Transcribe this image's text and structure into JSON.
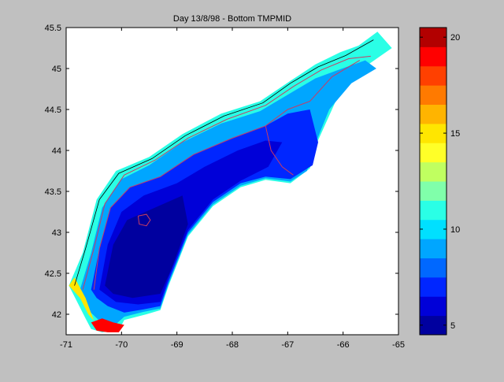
{
  "figure": {
    "background": "#c0c0c0"
  },
  "chart_data": [
    {
      "type": "heatmap",
      "title": "Day 13/8/98 - Bottom TMPMID",
      "xlabel": "",
      "ylabel": "",
      "xlim": [
        -71,
        -65
      ],
      "ylim": [
        41.75,
        45.5
      ],
      "xticks": [
        -71,
        -70,
        -69,
        -68,
        -67,
        -66,
        -65
      ],
      "yticks": [
        42,
        42.5,
        43,
        43.5,
        44,
        44.5,
        45,
        45.5
      ],
      "grid": false,
      "colors": {
        "cold": "#00009f",
        "mid": "#00e8ff",
        "warm": "#ffff00",
        "hot": "#b20000",
        "contour_red": "#c83c64",
        "contour_black": "#000000",
        "plot_background": "#ffffff"
      },
      "regions": [
        {
          "temp": 11,
          "polygon": [
            [
              -70.95,
              42.35
            ],
            [
              -70.7,
              42.75
            ],
            [
              -70.45,
              43.4
            ],
            [
              -70.1,
              43.75
            ],
            [
              -69.5,
              43.92
            ],
            [
              -68.9,
              44.2
            ],
            [
              -68.2,
              44.45
            ],
            [
              -67.5,
              44.6
            ],
            [
              -66.95,
              44.85
            ],
            [
              -66.5,
              45.05
            ],
            [
              -66.05,
              45.2
            ],
            [
              -65.72,
              45.28
            ],
            [
              -65.38,
              45.45
            ],
            [
              -65.12,
              45.25
            ],
            [
              -65.65,
              45.0
            ],
            [
              -66.1,
              44.65
            ],
            [
              -66.5,
              44.05
            ],
            [
              -66.6,
              43.78
            ],
            [
              -66.95,
              43.6
            ],
            [
              -67.4,
              43.64
            ],
            [
              -67.85,
              43.55
            ],
            [
              -68.35,
              43.32
            ],
            [
              -68.8,
              42.95
            ],
            [
              -69.15,
              42.35
            ],
            [
              -69.3,
              42.05
            ],
            [
              -69.55,
              42.0
            ],
            [
              -69.95,
              41.93
            ],
            [
              -70.05,
              41.8
            ],
            [
              -70.35,
              41.78
            ],
            [
              -70.55,
              41.82
            ],
            [
              -70.65,
              41.95
            ]
          ]
        },
        {
          "temp": 9,
          "polygon": [
            [
              -70.75,
              42.3
            ],
            [
              -70.55,
              42.75
            ],
            [
              -70.35,
              43.3
            ],
            [
              -70.0,
              43.65
            ],
            [
              -69.5,
              43.82
            ],
            [
              -68.9,
              44.1
            ],
            [
              -68.2,
              44.33
            ],
            [
              -67.5,
              44.48
            ],
            [
              -66.95,
              44.7
            ],
            [
              -66.5,
              44.88
            ],
            [
              -66.1,
              44.98
            ],
            [
              -65.6,
              45.1
            ],
            [
              -65.4,
              45.0
            ],
            [
              -65.85,
              44.82
            ],
            [
              -66.25,
              44.5
            ],
            [
              -66.55,
              44.0
            ],
            [
              -66.65,
              43.75
            ],
            [
              -66.95,
              43.62
            ],
            [
              -67.4,
              43.66
            ],
            [
              -67.85,
              43.57
            ],
            [
              -68.35,
              43.34
            ],
            [
              -68.8,
              42.97
            ],
            [
              -69.15,
              42.37
            ],
            [
              -69.3,
              42.07
            ],
            [
              -69.6,
              42.03
            ],
            [
              -69.95,
              41.97
            ],
            [
              -70.1,
              41.88
            ],
            [
              -70.4,
              41.92
            ],
            [
              -70.6,
              42.05
            ]
          ]
        },
        {
          "temp": 7,
          "polygon": [
            [
              -70.55,
              42.3
            ],
            [
              -70.4,
              42.8
            ],
            [
              -70.2,
              43.3
            ],
            [
              -69.85,
              43.55
            ],
            [
              -69.3,
              43.68
            ],
            [
              -68.7,
              43.95
            ],
            [
              -68.0,
              44.15
            ],
            [
              -67.4,
              44.3
            ],
            [
              -67.0,
              44.45
            ],
            [
              -66.6,
              44.5
            ],
            [
              -66.45,
              44.1
            ],
            [
              -66.55,
              43.82
            ],
            [
              -66.95,
              43.65
            ],
            [
              -67.4,
              43.68
            ],
            [
              -67.85,
              43.6
            ],
            [
              -68.35,
              43.37
            ],
            [
              -68.8,
              43.0
            ],
            [
              -69.15,
              42.4
            ],
            [
              -69.3,
              42.1
            ],
            [
              -69.6,
              42.06
            ],
            [
              -69.95,
              42.02
            ],
            [
              -70.25,
              42.1
            ],
            [
              -70.45,
              42.2
            ]
          ]
        },
        {
          "temp": 6,
          "polygon": [
            [
              -70.4,
              42.3
            ],
            [
              -70.25,
              42.85
            ],
            [
              -70.0,
              43.25
            ],
            [
              -69.6,
              43.45
            ],
            [
              -69.0,
              43.6
            ],
            [
              -68.5,
              43.8
            ],
            [
              -67.9,
              44.0
            ],
            [
              -67.4,
              44.12
            ],
            [
              -67.1,
              44.1
            ],
            [
              -67.35,
              43.8
            ],
            [
              -67.85,
              43.63
            ],
            [
              -68.35,
              43.4
            ],
            [
              -68.8,
              43.03
            ],
            [
              -69.15,
              42.45
            ],
            [
              -69.3,
              42.15
            ],
            [
              -69.7,
              42.12
            ],
            [
              -70.1,
              42.15
            ]
          ]
        },
        {
          "temp": 5,
          "polygon": [
            [
              -70.3,
              42.35
            ],
            [
              -70.15,
              42.85
            ],
            [
              -69.9,
              43.15
            ],
            [
              -69.4,
              43.3
            ],
            [
              -68.9,
              43.45
            ],
            [
              -68.8,
              43.1
            ],
            [
              -69.1,
              42.55
            ],
            [
              -69.3,
              42.25
            ],
            [
              -69.8,
              42.2
            ],
            [
              -70.15,
              42.25
            ]
          ]
        },
        {
          "temp": 19,
          "polygon": [
            [
              -70.55,
              41.9
            ],
            [
              -70.45,
              41.8
            ],
            [
              -70.25,
              41.78
            ],
            [
              -70.05,
              41.78
            ],
            [
              -69.95,
              41.87
            ],
            [
              -70.15,
              41.9
            ],
            [
              -70.35,
              41.95
            ]
          ]
        },
        {
          "temp": 15,
          "polygon": [
            [
              -70.95,
              42.35
            ],
            [
              -70.75,
              42.2
            ],
            [
              -70.6,
              42.0
            ],
            [
              -70.5,
              41.92
            ],
            [
              -70.65,
              42.2
            ],
            [
              -70.85,
              42.45
            ]
          ]
        }
      ],
      "red_contours": [
        [
          [
            -70.5,
            42.3
          ],
          [
            -70.4,
            42.8
          ],
          [
            -70.2,
            43.3
          ],
          [
            -69.85,
            43.55
          ],
          [
            -69.3,
            43.68
          ],
          [
            -68.7,
            43.95
          ],
          [
            -68.0,
            44.15
          ],
          [
            -67.4,
            44.3
          ],
          [
            -67.0,
            44.5
          ],
          [
            -66.6,
            44.6
          ],
          [
            -66.2,
            44.9
          ],
          [
            -65.7,
            45.1
          ]
        ],
        [
          [
            -70.7,
            42.3
          ],
          [
            -70.5,
            42.8
          ],
          [
            -70.3,
            43.35
          ],
          [
            -69.95,
            43.7
          ],
          [
            -69.4,
            43.88
          ],
          [
            -68.8,
            44.15
          ],
          [
            -68.1,
            44.38
          ],
          [
            -67.4,
            44.55
          ],
          [
            -66.9,
            44.78
          ],
          [
            -66.4,
            44.98
          ],
          [
            -65.9,
            45.12
          ],
          [
            -65.5,
            45.15
          ]
        ],
        [
          [
            -69.7,
            43.2
          ],
          [
            -69.55,
            43.22
          ],
          [
            -69.48,
            43.15
          ],
          [
            -69.55,
            43.08
          ],
          [
            -69.68,
            43.1
          ],
          [
            -69.7,
            43.2
          ]
        ],
        [
          [
            -67.4,
            44.3
          ],
          [
            -67.3,
            44.0
          ],
          [
            -67.1,
            43.8
          ],
          [
            -66.9,
            43.7
          ]
        ]
      ],
      "black_contours": [
        [
          [
            -70.85,
            42.35
          ],
          [
            -70.65,
            42.8
          ],
          [
            -70.4,
            43.4
          ],
          [
            -70.05,
            43.72
          ],
          [
            -69.45,
            43.9
          ],
          [
            -68.85,
            44.18
          ],
          [
            -68.15,
            44.42
          ],
          [
            -67.45,
            44.58
          ],
          [
            -66.95,
            44.82
          ],
          [
            -66.45,
            45.02
          ],
          [
            -65.95,
            45.16
          ],
          [
            -65.45,
            45.35
          ]
        ]
      ],
      "colorbar": {
        "range": [
          4.5,
          20.5
        ],
        "ticks": [
          5,
          10,
          15,
          20
        ],
        "levels": [
          {
            "lo": 4.5,
            "hi": 5.5,
            "color": "#00009f"
          },
          {
            "lo": 5.5,
            "hi": 6.5,
            "color": "#0000d8"
          },
          {
            "lo": 6.5,
            "hi": 7.5,
            "color": "#0026ff"
          },
          {
            "lo": 7.5,
            "hi": 8.5,
            "color": "#0068ff"
          },
          {
            "lo": 8.5,
            "hi": 9.5,
            "color": "#00a6ff"
          },
          {
            "lo": 9.5,
            "hi": 10.5,
            "color": "#00e0ff"
          },
          {
            "lo": 10.5,
            "hi": 11.5,
            "color": "#2affe6"
          },
          {
            "lo": 11.5,
            "hi": 12.5,
            "color": "#80ffaa"
          },
          {
            "lo": 12.5,
            "hi": 13.5,
            "color": "#c0ff60"
          },
          {
            "lo": 13.5,
            "hi": 14.5,
            "color": "#ffff28"
          },
          {
            "lo": 14.5,
            "hi": 15.5,
            "color": "#ffe600"
          },
          {
            "lo": 15.5,
            "hi": 16.5,
            "color": "#ffb400"
          },
          {
            "lo": 16.5,
            "hi": 17.5,
            "color": "#ff7a00"
          },
          {
            "lo": 17.5,
            "hi": 18.5,
            "color": "#ff4000"
          },
          {
            "lo": 18.5,
            "hi": 19.5,
            "color": "#ff0000"
          },
          {
            "lo": 19.5,
            "hi": 20.5,
            "color": "#b20000"
          }
        ]
      }
    }
  ]
}
